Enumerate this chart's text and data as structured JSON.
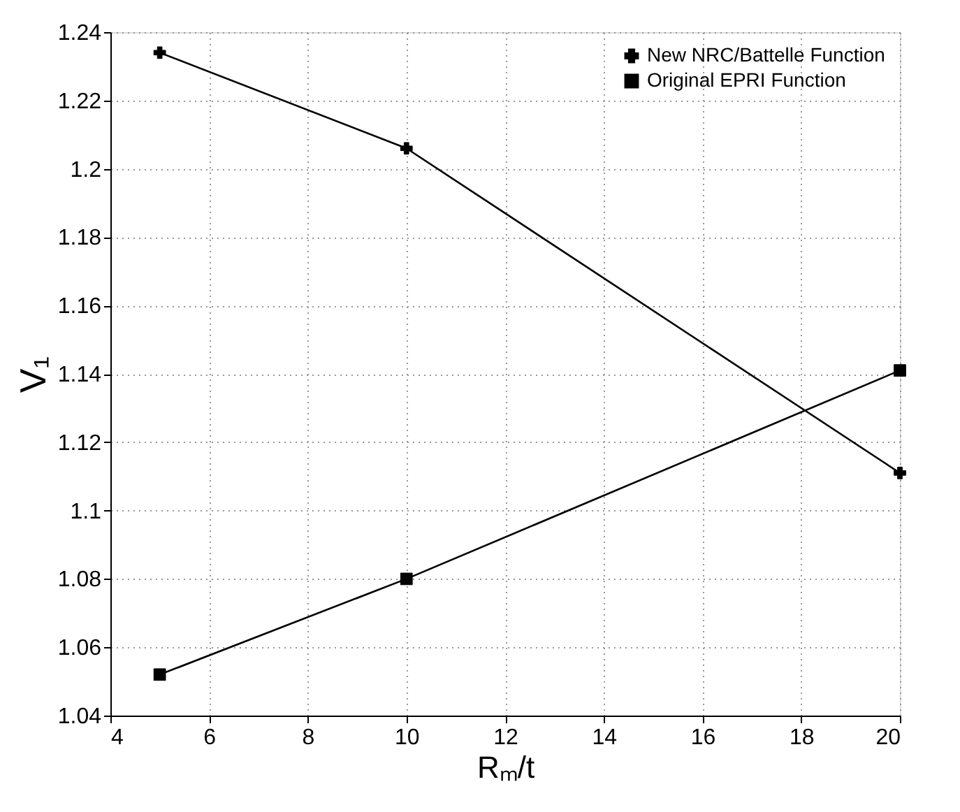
{
  "chart_data": {
    "type": "line",
    "xlabel": "Rₘ/t",
    "ylabel": "V₁",
    "x": [
      5,
      10,
      20
    ],
    "series": [
      {
        "name": "New NRC/Battelle Function",
        "color": "#000000",
        "marker": "cross",
        "values": [
          1.234,
          1.206,
          1.111
        ]
      },
      {
        "name": "Original EPRI Function",
        "color": "#000000",
        "marker": "square",
        "values": [
          1.052,
          1.08,
          1.141
        ]
      }
    ],
    "xlim": [
      4,
      20
    ],
    "xticks": [
      4,
      6,
      8,
      10,
      12,
      14,
      16,
      18,
      20
    ],
    "ylim": [
      1.04,
      1.24
    ],
    "yticks": [
      1.04,
      1.06,
      1.08,
      {
        "value": 1.1,
        "label": "1.1"
      },
      1.12,
      1.14,
      1.16,
      1.18,
      {
        "value": 1.2,
        "label": "1.2"
      },
      1.22,
      1.24
    ],
    "grid": true,
    "legend": "top right",
    "line_style": "solid"
  }
}
